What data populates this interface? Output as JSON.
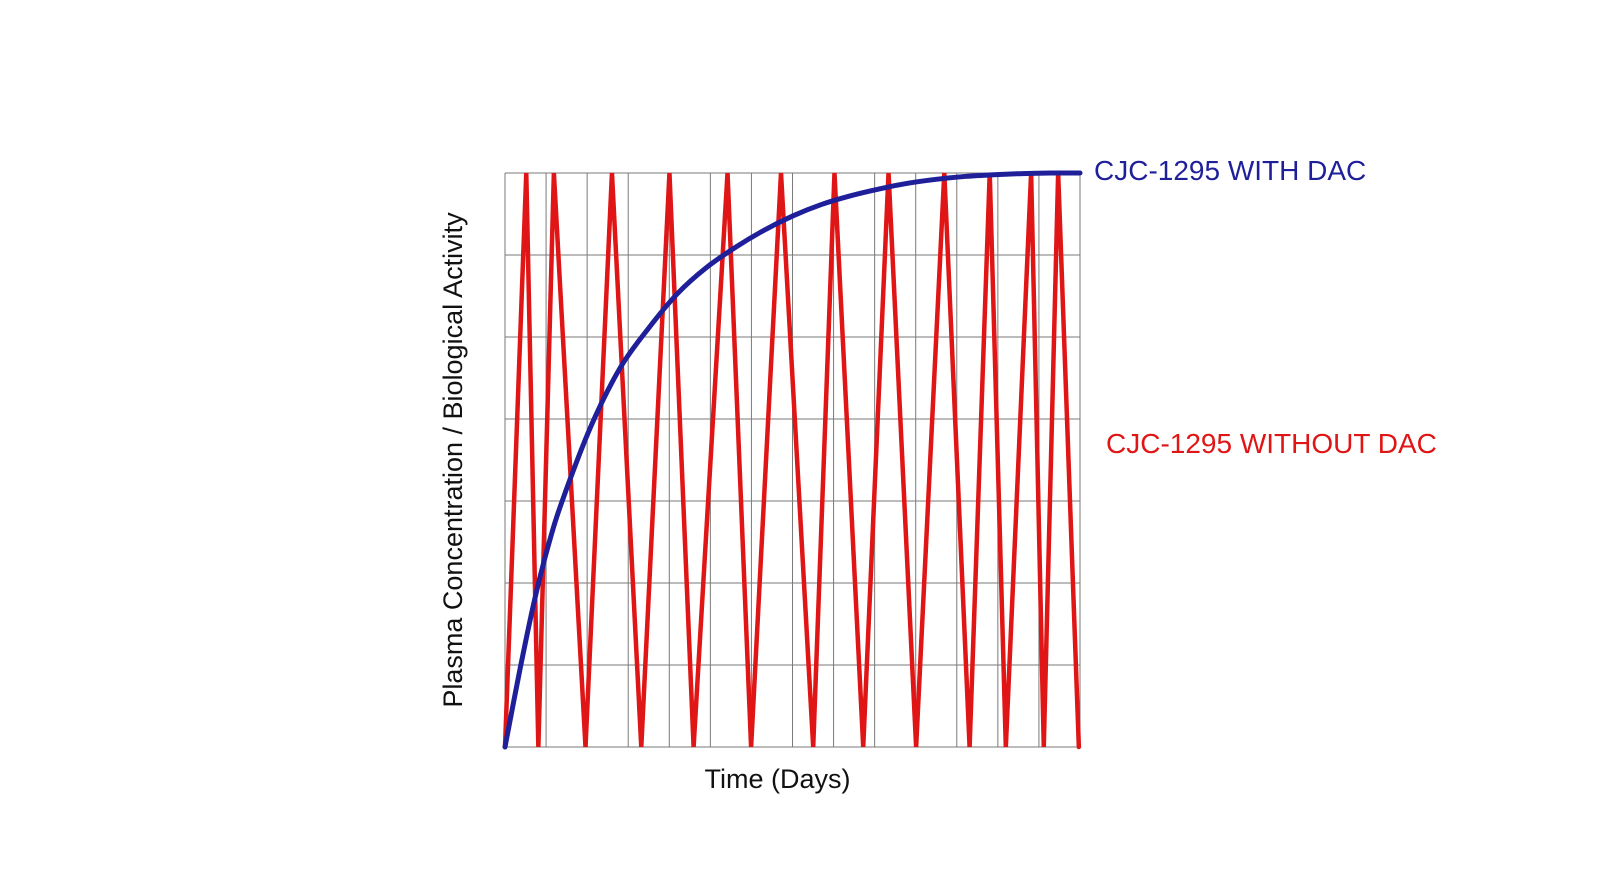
{
  "chart_data": {
    "type": "line",
    "title": "",
    "xlabel": "Time (Days)",
    "ylabel": "Plasma Concentration / Biological Activity",
    "xlim": [
      0,
      1
    ],
    "ylim": [
      0,
      1
    ],
    "grid": true,
    "grid_columns": 14,
    "grid_rows": 7,
    "legend_placement": "right",
    "series": [
      {
        "name": "CJC-1295 WITH DAC",
        "color": "#1f1f9a",
        "x": [
          0,
          0.025,
          0.05,
          0.075,
          0.1,
          0.15,
          0.2,
          0.25,
          0.3,
          0.35,
          0.4,
          0.45,
          0.5,
          0.55,
          0.6,
          0.65,
          0.7,
          0.75,
          0.8,
          0.85,
          0.9,
          0.95,
          1.0
        ],
        "y": [
          0,
          0.13,
          0.25,
          0.35,
          0.43,
          0.56,
          0.66,
          0.73,
          0.79,
          0.835,
          0.87,
          0.9,
          0.925,
          0.945,
          0.96,
          0.972,
          0.982,
          0.989,
          0.994,
          0.997,
          0.999,
          1.0,
          1.0
        ]
      },
      {
        "name": "CJC-1295 WITHOUT DAC",
        "color": "#e01515",
        "x": [
          0,
          0.037,
          0.058,
          0.085,
          0.14,
          0.186,
          0.237,
          0.286,
          0.328,
          0.387,
          0.428,
          0.48,
          0.536,
          0.573,
          0.623,
          0.667,
          0.715,
          0.764,
          0.808,
          0.843,
          0.871,
          0.915,
          0.937,
          0.962,
          0.998
        ],
        "y": [
          0,
          1,
          0,
          1,
          0,
          1,
          0,
          1,
          0,
          1,
          0,
          1,
          0,
          1,
          0,
          1,
          0,
          1,
          0,
          1,
          0,
          1,
          0,
          1,
          0
        ]
      }
    ]
  }
}
